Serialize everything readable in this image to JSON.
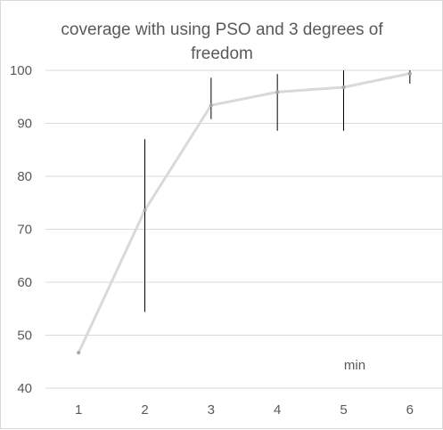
{
  "chart_data": {
    "type": "line",
    "title_lines": [
      "coverage with using PSO and 3 degrees of",
      "freedom"
    ],
    "xlabel": "",
    "ylabel": "",
    "annotation": "min",
    "x": [
      "1",
      "2",
      "3",
      "4",
      "5",
      "6"
    ],
    "series": [
      {
        "values": [
          46.7,
          73.6,
          93.4,
          95.9,
          96.8,
          99.4
        ],
        "error_low": [
          null,
          54.4,
          90.8,
          88.6,
          88.6,
          97.5
        ],
        "error_high": [
          null,
          87.0,
          98.6,
          99.3,
          100.0,
          100.0
        ]
      }
    ],
    "ylim": [
      40,
      100
    ],
    "y_ticks": [
      "40",
      "50",
      "60",
      "70",
      "80",
      "90",
      "100"
    ],
    "grid": "horizontal",
    "legend": "none",
    "colors": {
      "line": "#d9d9d9",
      "marker": "#a6a6a6",
      "error_bar": "#000000",
      "grid": "#d9d9d9",
      "text": "#595959"
    }
  }
}
